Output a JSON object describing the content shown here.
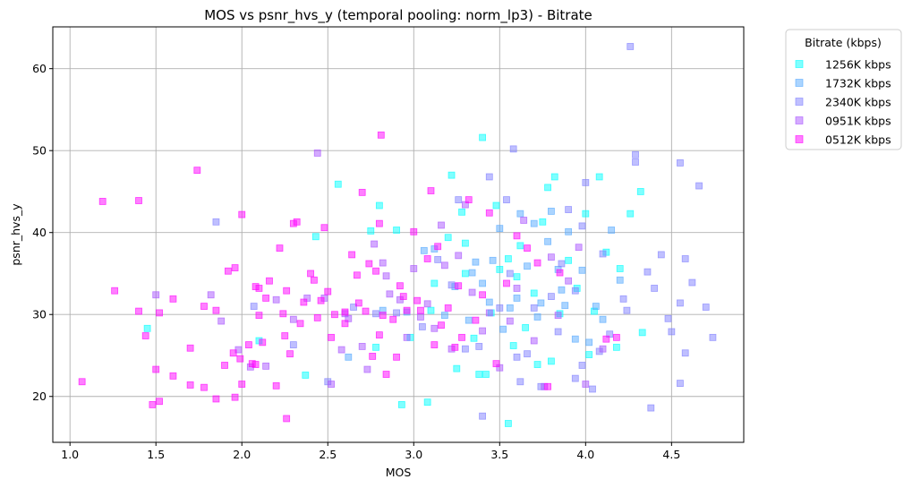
{
  "chart_data": {
    "type": "scatter",
    "title": "MOS vs psnr_hvs_y (temporal pooling: norm_lp3) - Bitrate",
    "xlabel": "MOS",
    "ylabel": "psnr_hvs_y",
    "xlim": [
      0.9,
      4.92
    ],
    "ylim": [
      14.4,
      65.1
    ],
    "xticks": [
      1.0,
      1.5,
      2.0,
      2.5,
      3.0,
      3.5,
      4.0,
      4.5
    ],
    "xtick_labels": [
      "1.0",
      "1.5",
      "2.0",
      "2.5",
      "3.0",
      "3.5",
      "4.0",
      "4.5"
    ],
    "yticks": [
      20,
      30,
      40,
      50,
      60
    ],
    "ytick_labels": [
      "20",
      "30",
      "40",
      "50",
      "60"
    ],
    "grid": true,
    "marker": "square",
    "legend": {
      "title": "Bitrate (kbps)",
      "placement": "outside-upper-right"
    },
    "series": [
      {
        "name": "1256K kbps",
        "color": "#00ffff",
        "points": [
          [
            1.45,
            28.3
          ],
          [
            2.1,
            26.8
          ],
          [
            2.37,
            22.6
          ],
          [
            2.43,
            39.5
          ],
          [
            2.56,
            45.9
          ],
          [
            2.75,
            40.2
          ],
          [
            2.78,
            26.0
          ],
          [
            2.8,
            43.3
          ],
          [
            2.9,
            40.3
          ],
          [
            2.93,
            19.0
          ],
          [
            2.98,
            27.2
          ],
          [
            3.08,
            19.3
          ],
          [
            3.1,
            30.5
          ],
          [
            3.12,
            33.8
          ],
          [
            3.2,
            39.4
          ],
          [
            3.22,
            47.0
          ],
          [
            3.25,
            23.4
          ],
          [
            3.28,
            42.5
          ],
          [
            3.3,
            35.0
          ],
          [
            3.35,
            27.1
          ],
          [
            3.38,
            22.7
          ],
          [
            3.4,
            51.6
          ],
          [
            3.42,
            22.7
          ],
          [
            3.45,
            30.2
          ],
          [
            3.48,
            43.3
          ],
          [
            3.5,
            35.5
          ],
          [
            3.55,
            16.7
          ],
          [
            3.58,
            26.2
          ],
          [
            3.6,
            34.6
          ],
          [
            3.65,
            28.4
          ],
          [
            3.7,
            32.6
          ],
          [
            3.72,
            23.9
          ],
          [
            3.75,
            41.3
          ],
          [
            3.78,
            45.5
          ],
          [
            3.8,
            24.3
          ],
          [
            3.82,
            46.8
          ],
          [
            3.85,
            30.1
          ],
          [
            3.9,
            36.6
          ],
          [
            3.95,
            33.2
          ],
          [
            4.0,
            42.3
          ],
          [
            4.02,
            25.1
          ],
          [
            4.05,
            30.4
          ],
          [
            4.08,
            46.8
          ],
          [
            4.12,
            37.6
          ],
          [
            4.18,
            26.0
          ],
          [
            4.2,
            35.6
          ],
          [
            4.26,
            42.3
          ],
          [
            4.32,
            45.0
          ],
          [
            4.33,
            27.8
          ],
          [
            3.55,
            36.8
          ],
          [
            3.3,
            38.7
          ],
          [
            3.62,
            38.4
          ]
        ]
      },
      {
        "name": "1732K kbps",
        "color": "#55aaff",
        "points": [
          [
            2.62,
            24.8
          ],
          [
            2.82,
            30.5
          ],
          [
            2.96,
            30.3
          ],
          [
            3.06,
            37.8
          ],
          [
            3.12,
            38.0
          ],
          [
            3.18,
            29.9
          ],
          [
            3.24,
            33.4
          ],
          [
            3.32,
            29.3
          ],
          [
            3.36,
            36.4
          ],
          [
            3.4,
            33.8
          ],
          [
            3.46,
            36.6
          ],
          [
            3.5,
            40.5
          ],
          [
            3.52,
            28.2
          ],
          [
            3.56,
            30.8
          ],
          [
            3.62,
            42.3
          ],
          [
            3.66,
            35.9
          ],
          [
            3.7,
            41.1
          ],
          [
            3.74,
            31.4
          ],
          [
            3.78,
            38.9
          ],
          [
            3.8,
            42.6
          ],
          [
            3.84,
            35.5
          ],
          [
            3.88,
            31.1
          ],
          [
            3.9,
            40.1
          ],
          [
            3.94,
            27.0
          ],
          [
            3.98,
            35.4
          ],
          [
            4.02,
            26.6
          ],
          [
            4.06,
            31.0
          ],
          [
            4.1,
            29.4
          ],
          [
            4.15,
            40.3
          ],
          [
            4.2,
            34.2
          ],
          [
            3.6,
            32.0
          ],
          [
            3.44,
            31.5
          ],
          [
            3.34,
            35.1
          ],
          [
            3.72,
            29.7
          ],
          [
            3.86,
            33.0
          ]
        ]
      },
      {
        "name": "2340K kbps",
        "color": "#8080ff",
        "points": [
          [
            1.85,
            41.3
          ],
          [
            2.07,
            31.0
          ],
          [
            2.3,
            26.3
          ],
          [
            2.5,
            21.8
          ],
          [
            2.65,
            30.9
          ],
          [
            2.78,
            30.1
          ],
          [
            2.9,
            30.2
          ],
          [
            3.05,
            28.5
          ],
          [
            3.14,
            36.7
          ],
          [
            3.22,
            33.6
          ],
          [
            3.26,
            44.0
          ],
          [
            3.3,
            25.8
          ],
          [
            3.38,
            26.1
          ],
          [
            3.4,
            17.6
          ],
          [
            3.44,
            46.8
          ],
          [
            3.5,
            30.8
          ],
          [
            3.54,
            44.0
          ],
          [
            3.58,
            50.2
          ],
          [
            3.6,
            24.8
          ],
          [
            3.62,
            21.8
          ],
          [
            3.66,
            25.2
          ],
          [
            3.7,
            30.8
          ],
          [
            3.74,
            21.2
          ],
          [
            3.8,
            32.2
          ],
          [
            3.86,
            36.2
          ],
          [
            3.9,
            42.8
          ],
          [
            3.94,
            32.9
          ],
          [
            3.98,
            40.8
          ],
          [
            4.0,
            46.1
          ],
          [
            4.04,
            20.9
          ],
          [
            4.1,
            37.4
          ],
          [
            4.14,
            27.6
          ],
          [
            4.22,
            31.9
          ],
          [
            4.24,
            30.5
          ],
          [
            4.26,
            62.7
          ],
          [
            4.29,
            49.5
          ],
          [
            4.29,
            48.6
          ],
          [
            4.36,
            35.2
          ],
          [
            4.38,
            18.6
          ],
          [
            4.4,
            33.2
          ],
          [
            4.44,
            37.3
          ],
          [
            4.48,
            29.5
          ],
          [
            4.5,
            27.9
          ],
          [
            4.55,
            21.6
          ],
          [
            4.55,
            31.4
          ],
          [
            4.55,
            48.5
          ],
          [
            4.58,
            25.3
          ],
          [
            4.58,
            36.8
          ],
          [
            4.62,
            33.9
          ],
          [
            4.66,
            45.7
          ],
          [
            4.7,
            30.9
          ],
          [
            4.74,
            27.2
          ],
          [
            3.98,
            23.8
          ],
          [
            3.84,
            27.9
          ],
          [
            3.56,
            35.0
          ],
          [
            3.94,
            22.2
          ],
          [
            4.08,
            25.5
          ]
        ]
      },
      {
        "name": "0951K kbps",
        "color": "#aa55ff",
        "points": [
          [
            1.5,
            32.4
          ],
          [
            1.82,
            32.4
          ],
          [
            1.88,
            29.2
          ],
          [
            1.98,
            25.7
          ],
          [
            2.05,
            23.6
          ],
          [
            2.14,
            23.7
          ],
          [
            2.2,
            31.8
          ],
          [
            2.3,
            29.4
          ],
          [
            2.38,
            32.0
          ],
          [
            2.44,
            49.7
          ],
          [
            2.48,
            32.0
          ],
          [
            2.52,
            21.5
          ],
          [
            2.58,
            25.7
          ],
          [
            2.62,
            29.5
          ],
          [
            2.7,
            26.1
          ],
          [
            2.73,
            23.3
          ],
          [
            2.77,
            38.6
          ],
          [
            2.82,
            36.3
          ],
          [
            2.86,
            32.5
          ],
          [
            2.92,
            31.8
          ],
          [
            2.96,
            27.2
          ],
          [
            3.0,
            35.6
          ],
          [
            3.04,
            29.7
          ],
          [
            3.08,
            31.3
          ],
          [
            3.12,
            28.3
          ],
          [
            3.16,
            40.9
          ],
          [
            3.22,
            25.8
          ],
          [
            3.26,
            37.2
          ],
          [
            3.3,
            43.4
          ],
          [
            3.34,
            32.7
          ],
          [
            3.4,
            28.0
          ],
          [
            3.44,
            30.2
          ],
          [
            3.5,
            23.5
          ],
          [
            3.56,
            29.2
          ],
          [
            3.6,
            33.2
          ],
          [
            3.64,
            41.5
          ],
          [
            3.7,
            26.8
          ],
          [
            3.76,
            21.2
          ],
          [
            3.8,
            37.0
          ],
          [
            3.84,
            29.9
          ],
          [
            3.9,
            34.1
          ],
          [
            3.96,
            38.2
          ],
          [
            4.0,
            21.5
          ],
          [
            4.1,
            25.8
          ],
          [
            2.6,
            30.1
          ],
          [
            2.84,
            34.7
          ],
          [
            3.18,
            36.0
          ]
        ]
      },
      {
        "name": "0512K kbps",
        "color": "#ff00ff",
        "points": [
          [
            1.07,
            21.8
          ],
          [
            1.19,
            43.8
          ],
          [
            1.26,
            32.9
          ],
          [
            1.4,
            43.9
          ],
          [
            1.4,
            30.4
          ],
          [
            1.44,
            27.4
          ],
          [
            1.48,
            19.0
          ],
          [
            1.5,
            23.3
          ],
          [
            1.52,
            19.4
          ],
          [
            1.52,
            30.2
          ],
          [
            1.6,
            22.5
          ],
          [
            1.6,
            31.9
          ],
          [
            1.7,
            25.9
          ],
          [
            1.7,
            21.4
          ],
          [
            1.74,
            47.6
          ],
          [
            1.78,
            31.0
          ],
          [
            1.78,
            21.1
          ],
          [
            1.85,
            30.5
          ],
          [
            1.85,
            19.7
          ],
          [
            1.9,
            23.8
          ],
          [
            1.92,
            35.3
          ],
          [
            1.95,
            25.3
          ],
          [
            1.96,
            19.9
          ],
          [
            1.96,
            35.7
          ],
          [
            1.99,
            24.6
          ],
          [
            2.0,
            21.5
          ],
          [
            2.0,
            42.2
          ],
          [
            2.04,
            26.3
          ],
          [
            2.06,
            24.0
          ],
          [
            2.08,
            23.9
          ],
          [
            2.08,
            33.4
          ],
          [
            2.1,
            29.9
          ],
          [
            2.1,
            33.2
          ],
          [
            2.12,
            26.6
          ],
          [
            2.14,
            32.0
          ],
          [
            2.16,
            34.1
          ],
          [
            2.2,
            21.3
          ],
          [
            2.22,
            38.1
          ],
          [
            2.24,
            30.1
          ],
          [
            2.25,
            27.4
          ],
          [
            2.26,
            17.3
          ],
          [
            2.26,
            32.9
          ],
          [
            2.28,
            25.2
          ],
          [
            2.3,
            41.1
          ],
          [
            2.32,
            41.3
          ],
          [
            2.34,
            28.9
          ],
          [
            2.36,
            31.5
          ],
          [
            2.4,
            35.0
          ],
          [
            2.42,
            34.2
          ],
          [
            2.44,
            29.6
          ],
          [
            2.46,
            31.7
          ],
          [
            2.48,
            40.6
          ],
          [
            2.5,
            32.8
          ],
          [
            2.52,
            27.2
          ],
          [
            2.54,
            30.0
          ],
          [
            2.6,
            30.3
          ],
          [
            2.6,
            28.9
          ],
          [
            2.64,
            37.3
          ],
          [
            2.68,
            31.4
          ],
          [
            2.7,
            44.9
          ],
          [
            2.72,
            30.4
          ],
          [
            2.76,
            24.9
          ],
          [
            2.78,
            35.3
          ],
          [
            2.8,
            41.1
          ],
          [
            2.8,
            27.5
          ],
          [
            2.81,
            51.9
          ],
          [
            2.82,
            29.9
          ],
          [
            2.84,
            22.7
          ],
          [
            2.88,
            29.4
          ],
          [
            2.9,
            24.8
          ],
          [
            2.92,
            33.5
          ],
          [
            2.96,
            30.5
          ],
          [
            3.0,
            40.1
          ],
          [
            3.04,
            30.5
          ],
          [
            3.08,
            36.8
          ],
          [
            3.1,
            45.1
          ],
          [
            3.12,
            26.3
          ],
          [
            3.16,
            28.7
          ],
          [
            3.2,
            30.8
          ],
          [
            3.24,
            26.0
          ],
          [
            3.28,
            27.2
          ],
          [
            3.32,
            44.0
          ],
          [
            3.36,
            29.3
          ],
          [
            3.4,
            32.4
          ],
          [
            3.44,
            42.4
          ],
          [
            3.48,
            24.0
          ],
          [
            3.54,
            33.8
          ],
          [
            3.6,
            39.6
          ],
          [
            3.66,
            38.1
          ],
          [
            3.72,
            36.3
          ],
          [
            3.78,
            21.2
          ],
          [
            3.85,
            35.1
          ],
          [
            4.12,
            27.0
          ],
          [
            4.18,
            27.2
          ],
          [
            2.94,
            32.2
          ],
          [
            3.02,
            31.7
          ],
          [
            3.14,
            38.3
          ],
          [
            3.26,
            33.5
          ],
          [
            2.67,
            34.8
          ],
          [
            2.74,
            36.2
          ]
        ]
      }
    ]
  }
}
